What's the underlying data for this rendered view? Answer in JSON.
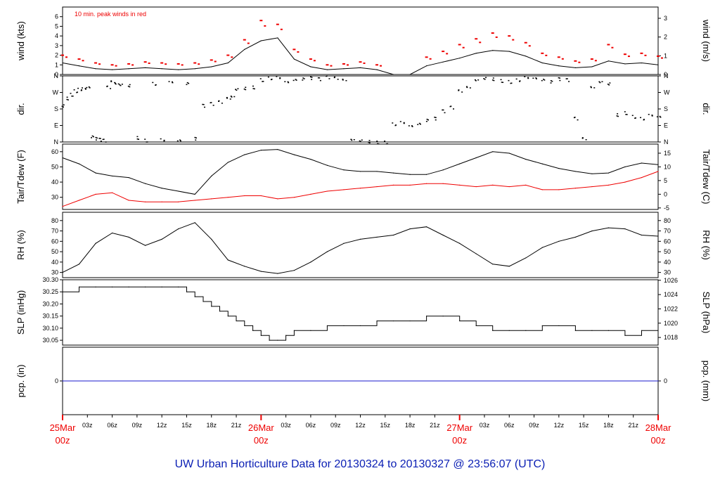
{
  "title": "UW Urban Horticulture Data for 20130324  to  20130327 @ 23:56:07  (UTC)",
  "colors": {
    "peak": "#ee0000",
    "main": "#000000",
    "dew": "#ee0000",
    "precip": "#1a1acc",
    "title": "#0a1eb4",
    "major_tick": "#ee0000"
  },
  "chart_data": [
    {
      "type": "line",
      "panel": "wind",
      "ylabel": "wind (kts)",
      "ylabel_right": "wind (m/s)",
      "ylim": [
        0,
        7
      ],
      "yticks": [
        "0",
        "1",
        "2",
        "3",
        "4",
        "5",
        "6"
      ],
      "yticks_right": [
        "0",
        "1",
        "2",
        "3"
      ],
      "annotation": "10 min. peak winds in red",
      "series": [
        {
          "color": "#000000",
          "x": [
            0,
            2,
            4,
            6,
            8,
            10,
            12,
            14,
            16,
            18,
            20,
            22,
            24,
            26,
            28,
            30,
            32,
            34,
            36,
            38,
            40,
            42,
            44,
            46,
            48,
            50,
            52,
            54,
            56,
            58,
            60,
            62,
            64,
            66,
            68,
            70,
            72
          ],
          "values": [
            1.2,
            0.9,
            0.6,
            0.5,
            0.6,
            0.7,
            0.6,
            0.5,
            0.6,
            0.8,
            1.2,
            2.6,
            3.5,
            3.8,
            1.6,
            0.8,
            0.5,
            0.6,
            0.7,
            0.5,
            0,
            0,
            0.9,
            1.3,
            1.7,
            2.2,
            2.5,
            2.4,
            1.9,
            1.2,
            0.9,
            0.7,
            0.8,
            1.4,
            1.1,
            1.2,
            1.0
          ]
        },
        {
          "color": "#ee0000",
          "x": [
            0,
            2,
            4,
            6,
            8,
            10,
            12,
            14,
            16,
            18,
            20,
            22,
            24,
            26,
            28,
            30,
            32,
            34,
            36,
            38,
            40,
            42,
            44,
            46,
            48,
            50,
            52,
            54,
            56,
            58,
            60,
            62,
            64,
            66,
            68,
            70,
            72
          ],
          "values": [
            2.0,
            1.6,
            1.2,
            1.0,
            1.1,
            1.3,
            1.2,
            1.1,
            1.2,
            1.5,
            2.0,
            3.6,
            5.6,
            5.2,
            2.6,
            1.6,
            1.0,
            1.1,
            1.3,
            1.0,
            0,
            0,
            1.8,
            2.4,
            3.1,
            3.7,
            4.3,
            4.0,
            3.3,
            2.2,
            1.8,
            1.4,
            1.6,
            3.1,
            2.1,
            2.2,
            1.9
          ]
        }
      ]
    },
    {
      "type": "scatter",
      "panel": "dir",
      "ylabel": "dir.",
      "yticks": [
        "N",
        "E",
        "S",
        "W",
        "N"
      ],
      "ylim": [
        0,
        360
      ],
      "series": [
        {
          "color": "#000000",
          "x": [
            0,
            0.5,
            1,
            1.5,
            2,
            2.5,
            3,
            3.5,
            4,
            4.5,
            5,
            5.5,
            6,
            6.5,
            7,
            8,
            9,
            10,
            11,
            12,
            13,
            14,
            15,
            16,
            17,
            18,
            19,
            20,
            20.5,
            21,
            22,
            23,
            24,
            25,
            26,
            27,
            28,
            29,
            30,
            31,
            32,
            33,
            34,
            35,
            36,
            37,
            38,
            39,
            40,
            41,
            42,
            43,
            44,
            45,
            46,
            47,
            48,
            49,
            50,
            51,
            52,
            53,
            54,
            55,
            56,
            57,
            58,
            59,
            60,
            61,
            62,
            63,
            64,
            65,
            66,
            67,
            68,
            69,
            70,
            71,
            72
          ],
          "values": [
            200,
            240,
            260,
            280,
            290,
            295,
            300,
            30,
            20,
            15,
            10,
            300,
            330,
            320,
            315,
            310,
            25,
            10,
            320,
            15,
            330,
            10,
            320,
            20,
            200,
            210,
            220,
            240,
            250,
            290,
            295,
            300,
            340,
            350,
            355,
            330,
            340,
            345,
            350,
            345,
            355,
            350,
            340,
            15,
            10,
            5,
            0,
            0,
            100,
            110,
            90,
            100,
            120,
            130,
            170,
            190,
            280,
            300,
            340,
            350,
            345,
            335,
            330,
            340,
            355,
            350,
            340,
            330,
            345,
            340,
            130,
            20,
            300,
            330,
            320,
            150,
            160,
            140,
            130,
            150,
            140
          ]
        }
      ]
    },
    {
      "type": "line",
      "panel": "temp",
      "ylabel": "Tair/Tdew (F)",
      "ylabel_right": "Tair/Tdew (C)",
      "ylim": [
        22,
        65
      ],
      "yticks": [
        "30",
        "40",
        "50",
        "60"
      ],
      "yticks_right": [
        "-5",
        "0",
        "5",
        "10",
        "15"
      ],
      "series": [
        {
          "name": "Tair",
          "color": "#000000",
          "x": [
            0,
            2,
            4,
            6,
            8,
            10,
            12,
            14,
            16,
            18,
            20,
            22,
            24,
            26,
            28,
            30,
            32,
            34,
            36,
            38,
            40,
            42,
            44,
            46,
            48,
            50,
            52,
            54,
            56,
            58,
            60,
            62,
            64,
            66,
            68,
            70,
            72
          ],
          "values": [
            56,
            52,
            46,
            44,
            43,
            39,
            36,
            34,
            32,
            44,
            53,
            58,
            61,
            61.5,
            58,
            55,
            51,
            48,
            47,
            47,
            46,
            45,
            45,
            48,
            52,
            56,
            60,
            59,
            55,
            52,
            49,
            47,
            45.5,
            46,
            50,
            52.5,
            51.5
          ]
        },
        {
          "name": "Tdew",
          "color": "#ee0000",
          "x": [
            0,
            2,
            4,
            6,
            8,
            10,
            12,
            14,
            16,
            18,
            20,
            22,
            24,
            26,
            28,
            30,
            32,
            34,
            36,
            38,
            40,
            42,
            44,
            46,
            48,
            50,
            52,
            54,
            56,
            58,
            60,
            62,
            64,
            66,
            68,
            70,
            72
          ],
          "values": [
            24,
            28,
            32,
            33,
            28,
            27,
            27,
            27,
            28,
            29,
            30,
            31,
            31,
            29,
            30,
            32,
            34,
            35,
            36,
            37,
            38,
            38,
            39,
            39,
            38,
            37,
            38,
            37,
            38,
            35,
            35,
            36,
            37,
            38,
            40,
            43,
            47
          ]
        }
      ]
    },
    {
      "type": "line",
      "panel": "rh",
      "ylabel": "RH (%)",
      "ylabel_right": "RH (%)",
      "ylim": [
        25,
        88
      ],
      "yticks": [
        "30",
        "40",
        "50",
        "60",
        "70",
        "80"
      ],
      "yticks_right": [
        "30",
        "40",
        "50",
        "60",
        "70",
        "80"
      ],
      "series": [
        {
          "color": "#000000",
          "x": [
            0,
            2,
            4,
            6,
            8,
            10,
            12,
            14,
            16,
            18,
            20,
            22,
            24,
            26,
            28,
            30,
            32,
            34,
            36,
            38,
            40,
            42,
            44,
            46,
            48,
            50,
            52,
            54,
            56,
            58,
            60,
            62,
            64,
            66,
            68,
            70,
            72
          ],
          "values": [
            30,
            38,
            58,
            68,
            64,
            56,
            62,
            72,
            78,
            62,
            42,
            36,
            31,
            29,
            32,
            40,
            50,
            58,
            62,
            64,
            66,
            72,
            74,
            66,
            58,
            48,
            38,
            36,
            44,
            54,
            60,
            64,
            70,
            73,
            72,
            66,
            65
          ]
        }
      ]
    },
    {
      "type": "line",
      "panel": "slp",
      "ylabel": "SLP (inHg)",
      "ylabel_right": "SLP (hPa)",
      "ylim": [
        30.03,
        30.3
      ],
      "yticks": [
        "30.05",
        "30.10",
        "30.15",
        "30.20",
        "30.25",
        "30.30"
      ],
      "yticks_right": [
        "1018",
        "1020",
        "1022",
        "1024",
        "1026"
      ],
      "series": [
        {
          "color": "#000000",
          "x": [
            0,
            2,
            4,
            6,
            8,
            10,
            12,
            14,
            15,
            16,
            17,
            18,
            19,
            20,
            21,
            22,
            23,
            24,
            25,
            26,
            27,
            28,
            30,
            32,
            34,
            36,
            38,
            40,
            42,
            44,
            46,
            48,
            50,
            52,
            54,
            56,
            58,
            60,
            62,
            64,
            66,
            68,
            70,
            72
          ],
          "values": [
            30.25,
            30.27,
            30.27,
            30.27,
            30.27,
            30.27,
            30.27,
            30.27,
            30.25,
            30.23,
            30.21,
            30.19,
            30.17,
            30.15,
            30.13,
            30.11,
            30.09,
            30.07,
            30.05,
            30.05,
            30.07,
            30.09,
            30.09,
            30.11,
            30.11,
            30.11,
            30.13,
            30.13,
            30.13,
            30.15,
            30.15,
            30.13,
            30.11,
            30.09,
            30.09,
            30.09,
            30.11,
            30.11,
            30.09,
            30.09,
            30.09,
            30.07,
            30.09,
            30.09
          ]
        }
      ]
    },
    {
      "type": "line",
      "panel": "pcp",
      "ylabel": "pcp. (in)",
      "ylabel_right": "pcp. (mm)",
      "ylim": [
        -1,
        1
      ],
      "yticks": [
        "0"
      ],
      "yticks_right": [
        "0"
      ],
      "series": [
        {
          "color": "#1a1acc",
          "x": [
            0,
            72
          ],
          "values": [
            0,
            0
          ]
        }
      ]
    }
  ],
  "xaxis": {
    "range": [
      0,
      72
    ],
    "minor": [
      "03z",
      "06z",
      "09z",
      "12z",
      "15z",
      "18z",
      "21z",
      "03z",
      "06z",
      "09z",
      "12z",
      "15z",
      "18z",
      "21z",
      "03z",
      "06z",
      "09z",
      "12z",
      "15z",
      "18z",
      "21z"
    ],
    "minor_hours": [
      3,
      6,
      9,
      12,
      15,
      18,
      21,
      27,
      30,
      33,
      36,
      39,
      42,
      45,
      51,
      54,
      57,
      60,
      63,
      66,
      69
    ],
    "major": [
      {
        "hour": 0,
        "date": "25Mar",
        "time": "00z"
      },
      {
        "hour": 24,
        "date": "26Mar",
        "time": "00z"
      },
      {
        "hour": 48,
        "date": "27Mar",
        "time": "00z"
      },
      {
        "hour": 72,
        "date": "28Mar",
        "time": "00z"
      }
    ]
  }
}
